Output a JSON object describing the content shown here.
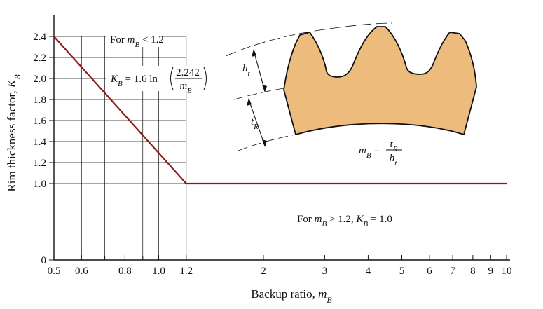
{
  "chart_data": {
    "type": "line",
    "x_scale": "log",
    "xlabel": "Backup ratio, ",
    "xlabel_symbol": "m",
    "xlabel_sub": "B",
    "ylabel": "Rim thickness factor, ",
    "ylabel_symbol": "K",
    "ylabel_sub": "B",
    "xlim": [
      0.5,
      10
    ],
    "y_ticks_grid": [
      1.0,
      1.2,
      1.4,
      1.6,
      1.8,
      2.0,
      2.2,
      2.4
    ],
    "y_zero_label": "0",
    "x_tick_labels": [
      "0.5",
      "0.6",
      "0.8",
      "1.0",
      "1.2",
      "2",
      "3",
      "4",
      "5",
      "6",
      "7",
      "8",
      "9",
      "10"
    ],
    "x_tick_values": [
      0.5,
      0.6,
      0.8,
      1.0,
      1.2,
      2,
      3,
      4,
      5,
      6,
      7,
      8,
      9,
      10
    ],
    "x_minor_ticks": [
      0.7,
      0.9
    ],
    "grid": true,
    "grid_x_region": [
      0.5,
      1.2
    ],
    "grid_vertical_lines": [
      0.6,
      0.7,
      0.8,
      0.9,
      1.0,
      1.2
    ],
    "series": [
      {
        "color": "#8b1a1a",
        "x": [
          0.5,
          1.2,
          10
        ],
        "y": [
          2.4,
          1.0,
          1.0
        ]
      }
    ],
    "annotations": {
      "low_prefix": "For ",
      "low_symbol": "m",
      "low_sub": "B",
      "low_rest": " < 1.2",
      "formula_lhs_symbol": "K",
      "formula_lhs_sub": "B",
      "formula_mid": " = 1.6 ln ",
      "formula_num": "2.242",
      "formula_den_symbol": "m",
      "formula_den_sub": "B",
      "high_prefix": "For ",
      "high_symbol1": "m",
      "high_sub1": "B",
      "high_mid": " > 1.2, ",
      "high_symbol2": "K",
      "high_sub2": "B",
      "high_rest": " = 1.0",
      "gear_ht_symbol": "h",
      "gear_ht_sub": "t",
      "gear_tr_symbol": "t",
      "gear_tr_sub": "R",
      "gear_mb_symbol": "m",
      "gear_mb_sub": "B",
      "gear_eq": " = ",
      "gear_num_symbol": "t",
      "gear_num_sub": "R",
      "gear_den_symbol": "h",
      "gear_den_sub": "t"
    },
    "colors": {
      "curve": "#8b1a1a",
      "gear_fill": "#edbb7c",
      "ink": "#111111"
    }
  }
}
